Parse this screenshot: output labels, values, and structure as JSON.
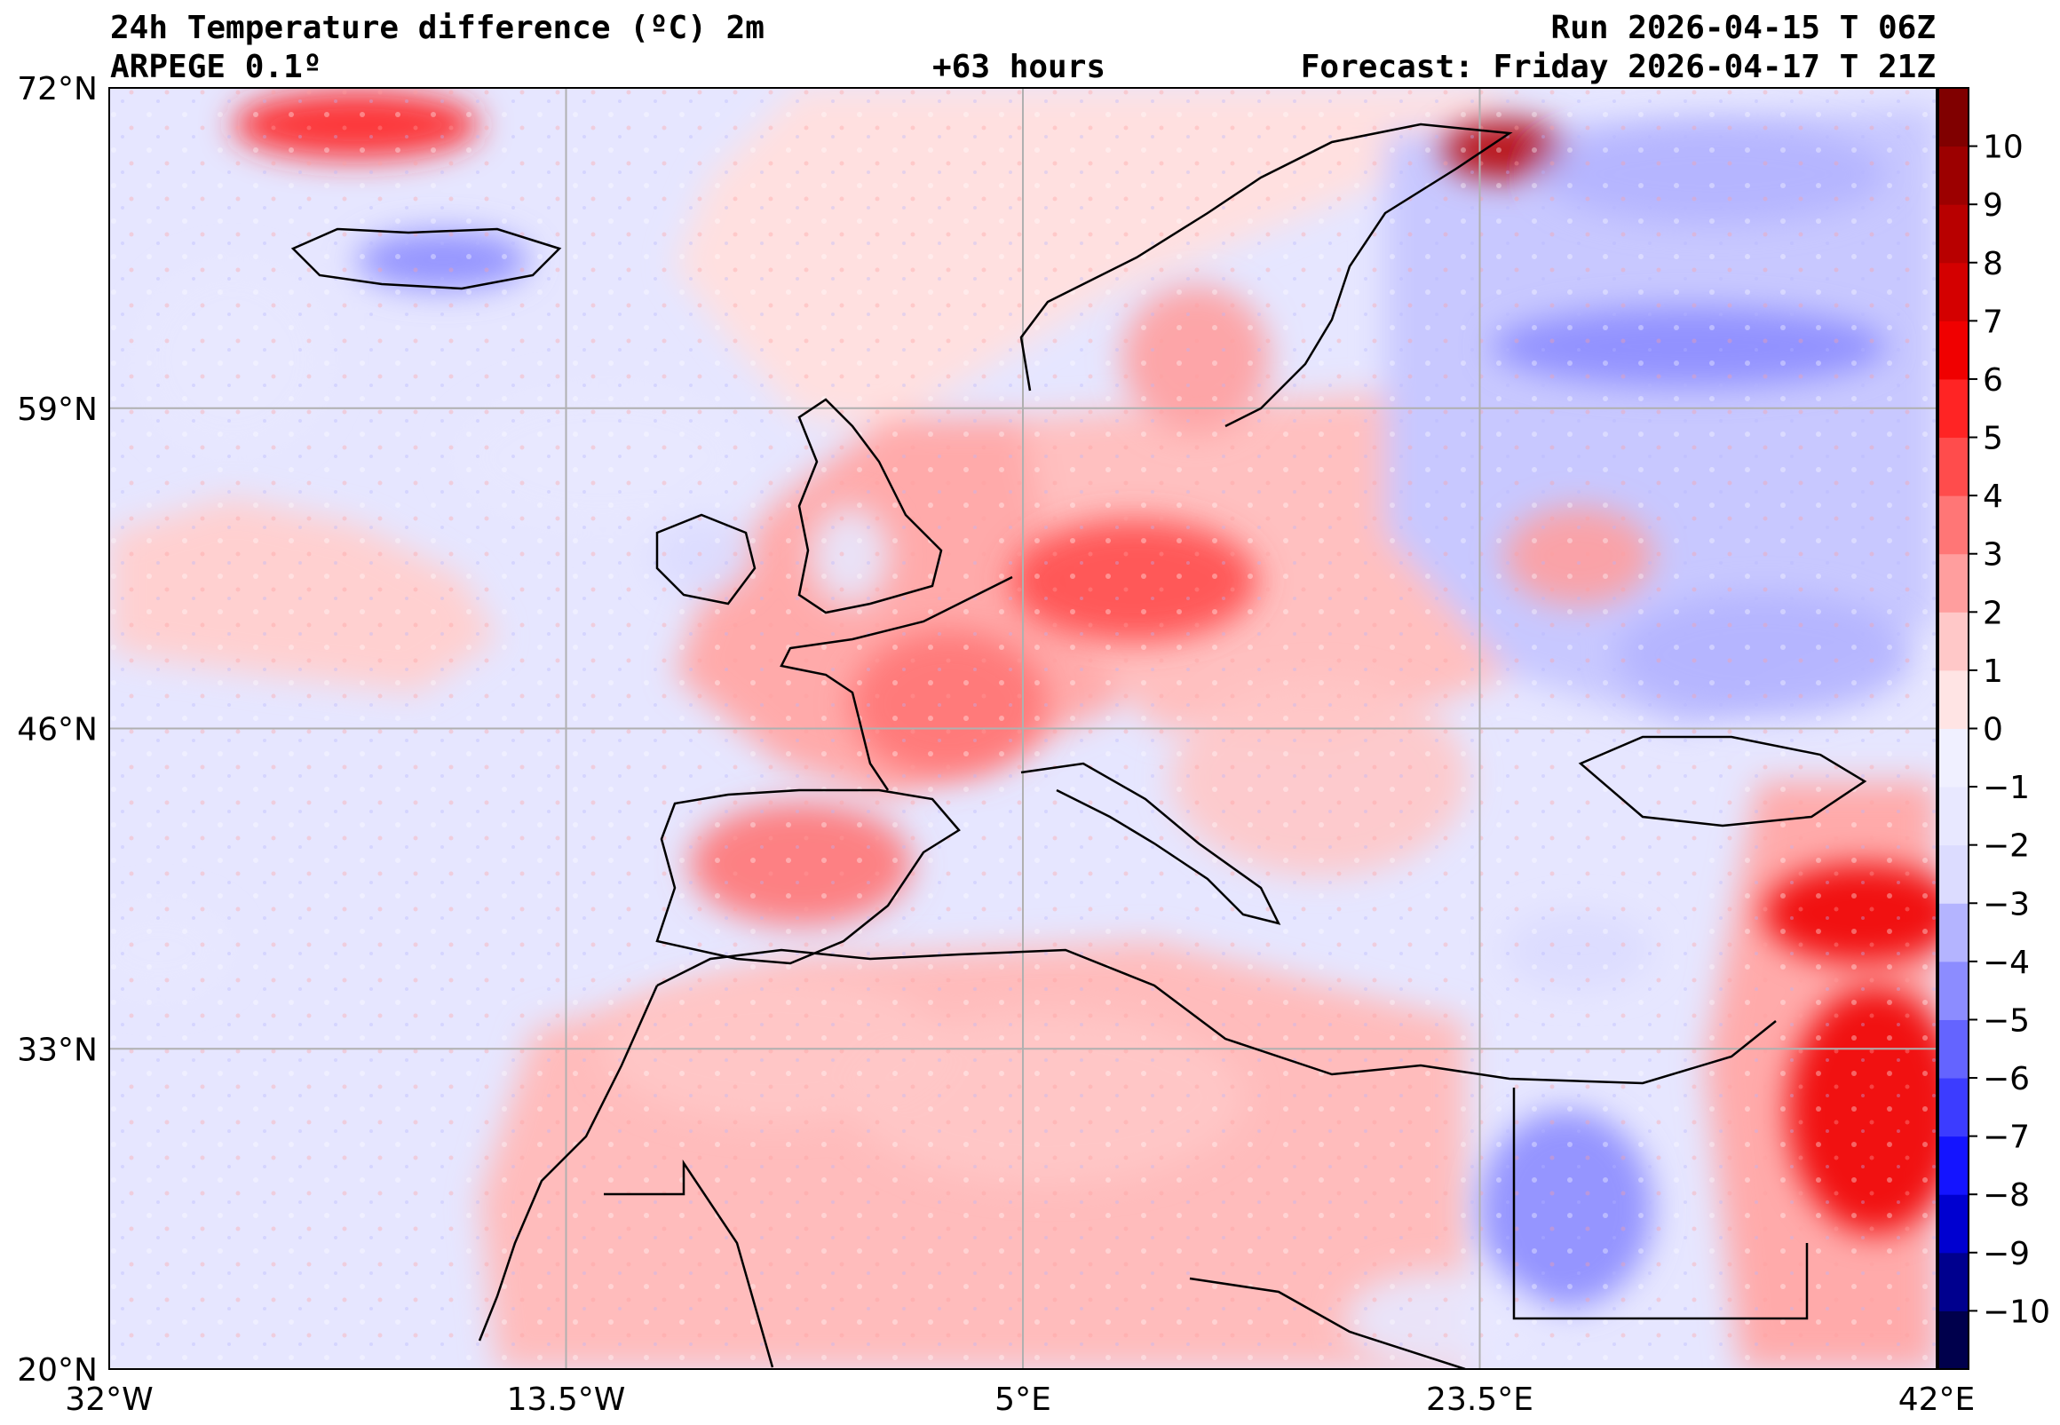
{
  "header": {
    "title": "24h Temperature difference (ºC) 2m",
    "model": "ARPEGE 0.1º",
    "lead_time": "+63 hours",
    "run": "Run 2026-04-15 T 06Z",
    "forecast": "Forecast: Friday 2026-04-17 T 21Z"
  },
  "map": {
    "lon_range": [
      -32,
      42
    ],
    "lat_range": [
      20,
      72
    ],
    "lon_ticks": [
      {
        "value": -32,
        "label": "32°W"
      },
      {
        "value": -13.5,
        "label": "13.5°W"
      },
      {
        "value": 5,
        "label": "5°E"
      },
      {
        "value": 23.5,
        "label": "23.5°E"
      },
      {
        "value": 42,
        "label": "42°E"
      }
    ],
    "lat_ticks": [
      {
        "value": 72,
        "label": "72°N"
      },
      {
        "value": 59,
        "label": "59°N"
      },
      {
        "value": 46,
        "label": "46°N"
      },
      {
        "value": 33,
        "label": "33°N"
      },
      {
        "value": 20,
        "label": "20°N"
      }
    ],
    "anomalies": [
      {
        "lon": -22,
        "lat": 70.5,
        "rx": 5,
        "ry": 1.4,
        "value": 5,
        "name": "greenland-warm"
      },
      {
        "lon": -18.5,
        "lat": 65,
        "rx": 3.5,
        "ry": 1.2,
        "value": -5,
        "name": "iceland-cold"
      },
      {
        "lon": -27,
        "lat": 61,
        "rx": 4,
        "ry": 4,
        "value": -2,
        "name": "atlantic-cold-west"
      },
      {
        "lon": -12,
        "lat": 57,
        "rx": 6,
        "ry": 3,
        "value": -1.5,
        "name": "atlantic-cold-north"
      },
      {
        "lon": -8,
        "lat": 53,
        "rx": 2,
        "ry": 1.6,
        "value": -2.5,
        "name": "ireland-cold"
      },
      {
        "lon": -2,
        "lat": 53,
        "rx": 1.6,
        "ry": 2,
        "value": -2,
        "name": "britain-cold"
      },
      {
        "lon": 2,
        "lat": 47,
        "rx": 4,
        "ry": 3,
        "value": 3.5,
        "name": "france-warm"
      },
      {
        "lon": 9.5,
        "lat": 52,
        "rx": 5,
        "ry": 2.5,
        "value": 4,
        "name": "germany-warm"
      },
      {
        "lon": -4,
        "lat": 40.5,
        "rx": 4.5,
        "ry": 2.5,
        "value": 3,
        "name": "iberia-warm"
      },
      {
        "lon": -5,
        "lat": 33,
        "rx": 7,
        "ry": 3,
        "value": 1.5,
        "name": "morocco-warm"
      },
      {
        "lon": 6,
        "lat": 31,
        "rx": 8,
        "ry": 3.5,
        "value": 1.5,
        "name": "algeria-warm"
      },
      {
        "lon": 17,
        "lat": 44,
        "rx": 6,
        "ry": 4,
        "value": 1.5,
        "name": "balkans-mixed"
      },
      {
        "lon": 24.5,
        "lat": 69.5,
        "rx": 2.5,
        "ry": 1.2,
        "value": 8,
        "name": "lapland-warm"
      },
      {
        "lon": 33,
        "lat": 68.5,
        "rx": 7,
        "ry": 2,
        "value": -4,
        "name": "kola-cold"
      },
      {
        "lon": 32,
        "lat": 61.5,
        "rx": 8,
        "ry": 1.6,
        "value": -4.5,
        "name": "russia-cold-band"
      },
      {
        "lon": 35,
        "lat": 49,
        "rx": 6,
        "ry": 2.5,
        "value": -3.5,
        "name": "ukraine-cold"
      },
      {
        "lon": 27.5,
        "lat": 53,
        "rx": 3,
        "ry": 2,
        "value": 2.5,
        "name": "belarus-warm"
      },
      {
        "lon": 27,
        "lat": 26.5,
        "rx": 3.5,
        "ry": 4,
        "value": -5,
        "name": "egypt-cold"
      },
      {
        "lon": 39.5,
        "lat": 30.5,
        "rx": 3.5,
        "ry": 5,
        "value": 6,
        "name": "arabia-warm"
      },
      {
        "lon": 39,
        "lat": 38.5,
        "rx": 4,
        "ry": 2,
        "value": 6,
        "name": "turkey-warm"
      },
      {
        "lon": 27.5,
        "lat": 37,
        "rx": 3,
        "ry": 1.6,
        "value": -3,
        "name": "aegean-cold"
      },
      {
        "lon": 12,
        "lat": 61,
        "rx": 3,
        "ry": 3,
        "value": 2,
        "name": "scandinavia-warm"
      },
      {
        "lon": -30,
        "lat": 37,
        "rx": 3,
        "ry": 2,
        "value": -2,
        "name": "azores-cold"
      },
      {
        "lon": 22,
        "lat": 22,
        "rx": 4,
        "ry": 2,
        "value": -1.5,
        "name": "libya-south-cold"
      }
    ],
    "cities": []
  },
  "colorbar": {
    "levels": [
      -11,
      -10,
      -9,
      -8,
      -7,
      -6,
      -5,
      -4,
      -3,
      -2,
      -1,
      0,
      1,
      2,
      3,
      4,
      5,
      6,
      7,
      8,
      9,
      10,
      11
    ],
    "colors": [
      "#00004c",
      "#00008e",
      "#0000d0",
      "#1414ff",
      "#3c3cff",
      "#6464ff",
      "#8c8cff",
      "#b4b4ff",
      "#dcdcff",
      "#e8e8ff",
      "#f0f0ff",
      "#ffe4e4",
      "#ffc8c8",
      "#ff9e9e",
      "#ff7676",
      "#ff4c4c",
      "#ff2424",
      "#f00000",
      "#d40000",
      "#b80000",
      "#9c0000",
      "#800000"
    ],
    "ticks": [
      10,
      9,
      8,
      7,
      6,
      5,
      4,
      3,
      2,
      1,
      0,
      -1,
      -2,
      -3,
      -4,
      -5,
      -6,
      -7,
      -8,
      -9,
      -10
    ],
    "tick_labels": [
      "10",
      "9",
      "8",
      "7",
      "6",
      "5",
      "4",
      "3",
      "2",
      "1",
      "0",
      "−1",
      "−2",
      "−3",
      "−4",
      "−5",
      "−6",
      "−7",
      "−8",
      "−9",
      "−10"
    ]
  }
}
